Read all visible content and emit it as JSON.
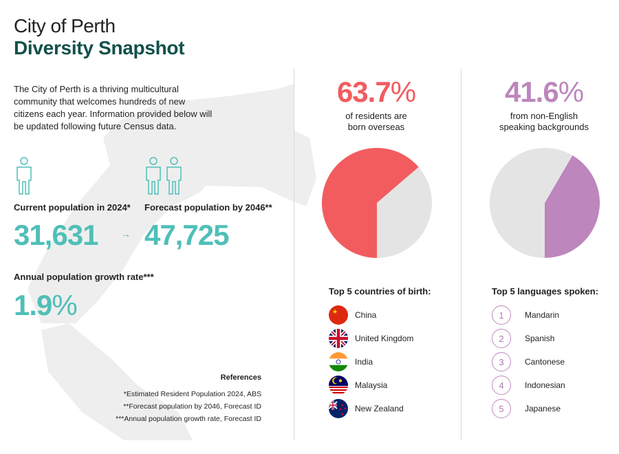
{
  "header": {
    "line1": "City of Perth",
    "line2": "Diversity Snapshot"
  },
  "intro": "The City of Perth is a thriving multicultural community that welcomes hundreds of new citizens each year. Information provided below will be updated following future Census data.",
  "population": {
    "current_label": "Current population in 2024*",
    "current_value": "31,631",
    "arrow": "→",
    "forecast_label": "Forecast population by 2046**",
    "forecast_value": "47,725",
    "growth_label": "Annual population growth rate***",
    "growth_value": "1.9",
    "growth_unit": "%"
  },
  "references": {
    "title": "References",
    "items": [
      "*Estimated Resident Population 2024, ABS",
      "**Forecast population by 2046, Forecast ID",
      "***Annual population growth rate, Forecast ID"
    ]
  },
  "overseas": {
    "value": "63.7",
    "unit": "%",
    "line1": "of residents are",
    "line2": "born overseas",
    "color": "#f25c5f"
  },
  "non_english": {
    "value": "41.6",
    "unit": "%",
    "line1": "from non-English",
    "line2": "speaking backgrounds",
    "color": "#bd86bd"
  },
  "chart_data": [
    {
      "type": "pie",
      "values": [
        63.7,
        36.3
      ],
      "colors": [
        "#f25c5f",
        "#e4e4e4"
      ]
    },
    {
      "type": "pie",
      "values": [
        41.6,
        58.4
      ],
      "colors": [
        "#bd86bd",
        "#e4e4e4"
      ]
    }
  ],
  "countries": {
    "title": "Top 5 countries of birth:",
    "items": [
      {
        "name": "China",
        "icon": "china-flag-icon"
      },
      {
        "name": "United Kingdom",
        "icon": "uk-flag-icon"
      },
      {
        "name": "India",
        "icon": "india-flag-icon"
      },
      {
        "name": "Malaysia",
        "icon": "malaysia-flag-icon"
      },
      {
        "name": "New Zealand",
        "icon": "new-zealand-flag-icon"
      }
    ]
  },
  "languages": {
    "title": "Top 5 languages spoken:",
    "items": [
      {
        "rank": "1",
        "name": "Mandarin"
      },
      {
        "rank": "2",
        "name": "Spanish"
      },
      {
        "rank": "3",
        "name": "Cantonese"
      },
      {
        "rank": "4",
        "name": "Indonesian"
      },
      {
        "rank": "5",
        "name": "Japanese"
      }
    ]
  }
}
